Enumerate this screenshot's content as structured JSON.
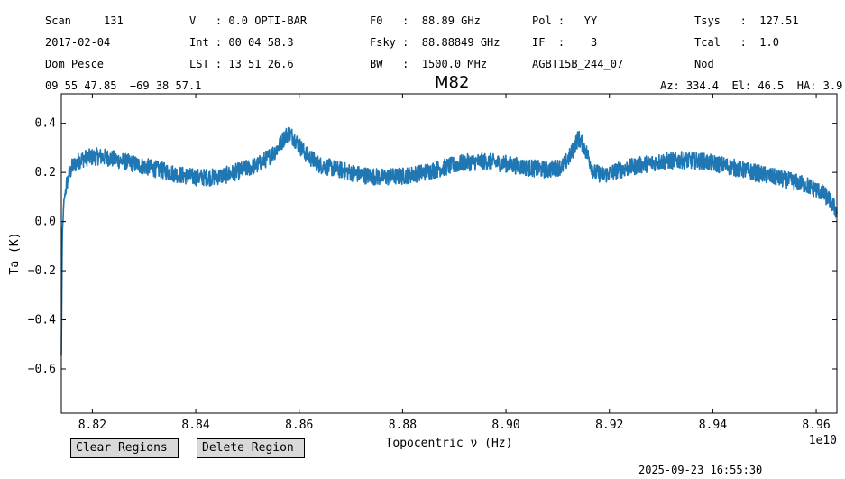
{
  "header": {
    "col1": [
      "Scan     131",
      "2017-02-04",
      "Dom Pesce"
    ],
    "col2": [
      "V   : 0.0 OPTI-BAR",
      "Int : 00 04 58.3",
      "LST : 13 51 26.6"
    ],
    "col3": [
      "F0   :  88.89 GHz",
      "Fsky :  88.88849 GHz",
      "BW   :  1500.0 MHz"
    ],
    "col4": [
      "Pol :   YY",
      "IF  :    3",
      "AGBT15B_244_07"
    ],
    "col5": [
      "Tsys   :  127.51",
      "Tcal   :  1.0",
      "Nod"
    ],
    "coords": "09 55 47.85  +69 38 57.1",
    "azel": "Az: 334.4  El: 46.5  HA: 3.9"
  },
  "buttons": {
    "clear": "Clear Regions",
    "delete": "Delete Region"
  },
  "timestamp": "2025-09-23 16:55:30",
  "chart_data": {
    "type": "line",
    "title": "M82",
    "xlabel": "Topocentric ν (Hz)",
    "ylabel": "Ta (K)",
    "x_offset_label": "1e10",
    "xlim": [
      8.814,
      8.964
    ],
    "ylim": [
      -0.78,
      0.52
    ],
    "xticks": [
      8.82,
      8.84,
      8.86,
      8.88,
      8.9,
      8.92,
      8.94,
      8.96
    ],
    "xtick_labels": [
      "8.82",
      "8.84",
      "8.86",
      "8.88",
      "8.90",
      "8.92",
      "8.94",
      "8.96"
    ],
    "yticks": [
      -0.6,
      -0.4,
      -0.2,
      0.0,
      0.2,
      0.4
    ],
    "ytick_labels": [
      "−0.6",
      "−0.4",
      "−0.2",
      "0.0",
      "0.2",
      "0.4"
    ],
    "color": "#1f77b4",
    "series": [
      {
        "x": [
          8.814,
          8.8142,
          8.8145,
          8.815,
          8.816,
          8.8175,
          8.819,
          8.821,
          8.823,
          8.825,
          8.828,
          8.831,
          8.834,
          8.837,
          8.84,
          8.843,
          8.846,
          8.849,
          8.852,
          8.854,
          8.8555,
          8.8565,
          8.8572,
          8.858,
          8.859,
          8.86,
          8.8615,
          8.864,
          8.868,
          8.872,
          8.876,
          8.88,
          8.884,
          8.888,
          8.892,
          8.896,
          8.9,
          8.904,
          8.908,
          8.911,
          8.9125,
          8.9135,
          8.914,
          8.915,
          8.916,
          8.917,
          8.919,
          8.922,
          8.926,
          8.93,
          8.934,
          8.938,
          8.942,
          8.946,
          8.95,
          8.954,
          8.958,
          8.961,
          8.9625,
          8.964
        ],
        "y": [
          -0.55,
          -0.05,
          0.08,
          0.15,
          0.22,
          0.25,
          0.26,
          0.265,
          0.26,
          0.25,
          0.235,
          0.22,
          0.205,
          0.19,
          0.18,
          0.18,
          0.19,
          0.21,
          0.23,
          0.26,
          0.29,
          0.32,
          0.345,
          0.36,
          0.34,
          0.31,
          0.27,
          0.23,
          0.21,
          0.19,
          0.18,
          0.185,
          0.2,
          0.22,
          0.24,
          0.245,
          0.235,
          0.22,
          0.21,
          0.225,
          0.27,
          0.32,
          0.34,
          0.31,
          0.26,
          0.2,
          0.19,
          0.21,
          0.23,
          0.245,
          0.25,
          0.245,
          0.23,
          0.21,
          0.19,
          0.17,
          0.15,
          0.12,
          0.09,
          0.04
        ],
        "noise": 0.035
      }
    ]
  }
}
